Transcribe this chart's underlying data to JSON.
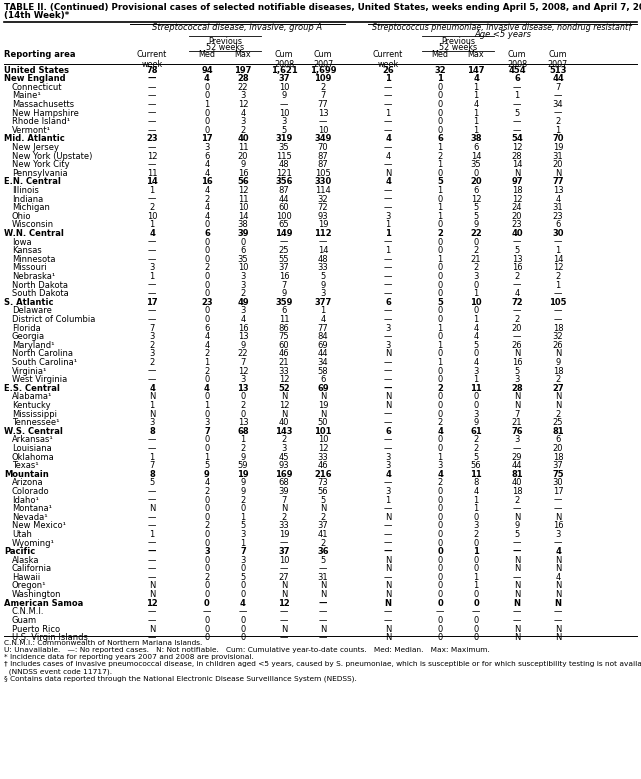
{
  "title": "TABLE II. (Continued) Provisional cases of selected notifiable diseases, United States, weeks ending April 5, 2008, and April 7, 2007",
  "title2": "(14th Week)*",
  "col_group1": "Streptococcal disease, invasive, group A",
  "col_group2": "Streptococcus pneumoniae, invasive disease, nondrug resistant†",
  "col_group2b": "Age <5 years",
  "reporting_area_label": "Reporting area",
  "rows": [
    [
      "United States",
      "78",
      "94",
      "197",
      "1,621",
      "1,699",
      "26",
      "32",
      "147",
      "454",
      "513"
    ],
    [
      "New England",
      "—",
      "4",
      "28",
      "37",
      "109",
      "1",
      "1",
      "4",
      "6",
      "44"
    ],
    [
      "Connecticut",
      "—",
      "0",
      "22",
      "10",
      "2",
      "—",
      "0",
      "1",
      "—",
      "7"
    ],
    [
      "Maine¹",
      "—",
      "0",
      "3",
      "9",
      "7",
      "—",
      "0",
      "1",
      "1",
      "—"
    ],
    [
      "Massachusetts",
      "—",
      "1",
      "12",
      "—",
      "77",
      "—",
      "0",
      "4",
      "—",
      "34"
    ],
    [
      "New Hampshire",
      "—",
      "0",
      "4",
      "10",
      "13",
      "1",
      "0",
      "1",
      "5",
      "—"
    ],
    [
      "Rhode Island¹",
      "—",
      "0",
      "3",
      "3",
      "—",
      "—",
      "0",
      "1",
      "—",
      "2"
    ],
    [
      "Vermont¹",
      "—",
      "0",
      "2",
      "5",
      "10",
      "—",
      "0",
      "1",
      "—",
      "1"
    ],
    [
      "Mid. Atlantic",
      "23",
      "17",
      "40",
      "319",
      "349",
      "4",
      "6",
      "38",
      "54",
      "70"
    ],
    [
      "New Jersey",
      "—",
      "3",
      "11",
      "35",
      "70",
      "—",
      "1",
      "6",
      "12",
      "19"
    ],
    [
      "New York (Upstate)",
      "12",
      "6",
      "20",
      "115",
      "87",
      "4",
      "2",
      "14",
      "28",
      "31"
    ],
    [
      "New York City",
      "—",
      "4",
      "9",
      "48",
      "87",
      "—",
      "1",
      "35",
      "14",
      "20"
    ],
    [
      "Pennsylvania",
      "11",
      "4",
      "16",
      "121",
      "105",
      "N",
      "0",
      "0",
      "N",
      "N"
    ],
    [
      "E.N. Central",
      "14",
      "16",
      "56",
      "356",
      "330",
      "4",
      "5",
      "20",
      "97",
      "77"
    ],
    [
      "Illinois",
      "1",
      "4",
      "12",
      "87",
      "114",
      "—",
      "1",
      "6",
      "18",
      "13"
    ],
    [
      "Indiana",
      "—",
      "2",
      "11",
      "44",
      "32",
      "—",
      "0",
      "12",
      "12",
      "4"
    ],
    [
      "Michigan",
      "2",
      "4",
      "10",
      "60",
      "72",
      "—",
      "1",
      "5",
      "24",
      "31"
    ],
    [
      "Ohio",
      "10",
      "4",
      "14",
      "100",
      "93",
      "3",
      "1",
      "5",
      "20",
      "23"
    ],
    [
      "Wisconsin",
      "1",
      "0",
      "38",
      "65",
      "19",
      "1",
      "0",
      "9",
      "23",
      "6"
    ],
    [
      "W.N. Central",
      "4",
      "6",
      "39",
      "149",
      "112",
      "1",
      "2",
      "22",
      "40",
      "30"
    ],
    [
      "Iowa",
      "—",
      "0",
      "0",
      "—",
      "—",
      "—",
      "0",
      "0",
      "—",
      "—"
    ],
    [
      "Kansas",
      "—",
      "0",
      "6",
      "25",
      "14",
      "1",
      "0",
      "2",
      "5",
      "1"
    ],
    [
      "Minnesota",
      "—",
      "0",
      "35",
      "55",
      "48",
      "—",
      "1",
      "21",
      "13",
      "14"
    ],
    [
      "Missouri",
      "3",
      "2",
      "10",
      "37",
      "33",
      "—",
      "0",
      "2",
      "16",
      "12"
    ],
    [
      "Nebraska¹",
      "1",
      "0",
      "3",
      "16",
      "5",
      "—",
      "0",
      "3",
      "2",
      "2"
    ],
    [
      "North Dakota",
      "—",
      "0",
      "3",
      "7",
      "9",
      "—",
      "0",
      "0",
      "—",
      "1"
    ],
    [
      "South Dakota",
      "—",
      "0",
      "2",
      "9",
      "3",
      "—",
      "0",
      "1",
      "4",
      "—"
    ],
    [
      "S. Atlantic",
      "17",
      "23",
      "49",
      "359",
      "377",
      "6",
      "5",
      "10",
      "72",
      "105"
    ],
    [
      "Delaware",
      "—",
      "0",
      "3",
      "6",
      "1",
      "—",
      "0",
      "0",
      "—",
      "—"
    ],
    [
      "District of Columbia",
      "—",
      "0",
      "4",
      "11",
      "4",
      "—",
      "0",
      "1",
      "2",
      "—"
    ],
    [
      "Florida",
      "7",
      "6",
      "16",
      "86",
      "77",
      "3",
      "1",
      "4",
      "20",
      "18"
    ],
    [
      "Georgia",
      "3",
      "4",
      "13",
      "75",
      "84",
      "—",
      "0",
      "4",
      "—",
      "32"
    ],
    [
      "Maryland¹",
      "2",
      "4",
      "9",
      "60",
      "69",
      "3",
      "1",
      "5",
      "26",
      "26"
    ],
    [
      "North Carolina",
      "3",
      "2",
      "22",
      "46",
      "44",
      "N",
      "0",
      "0",
      "N",
      "N"
    ],
    [
      "South Carolina¹",
      "2",
      "1",
      "7",
      "21",
      "34",
      "—",
      "1",
      "4",
      "16",
      "9"
    ],
    [
      "Virginia¹",
      "—",
      "2",
      "12",
      "33",
      "58",
      "—",
      "0",
      "3",
      "5",
      "18"
    ],
    [
      "West Virginia",
      "—",
      "0",
      "3",
      "12",
      "6",
      "—",
      "0",
      "1",
      "3",
      "2"
    ],
    [
      "E.S. Central",
      "4",
      "4",
      "13",
      "52",
      "69",
      "—",
      "2",
      "11",
      "28",
      "27"
    ],
    [
      "Alabama¹",
      "N",
      "0",
      "0",
      "N",
      "N",
      "N",
      "0",
      "0",
      "N",
      "N"
    ],
    [
      "Kentucky",
      "1",
      "1",
      "2",
      "12",
      "19",
      "N",
      "0",
      "0",
      "N",
      "N"
    ],
    [
      "Mississippi",
      "N",
      "0",
      "0",
      "N",
      "N",
      "—",
      "0",
      "3",
      "7",
      "2"
    ],
    [
      "Tennessee¹",
      "3",
      "3",
      "13",
      "40",
      "50",
      "—",
      "2",
      "9",
      "21",
      "25"
    ],
    [
      "W.S. Central",
      "8",
      "7",
      "68",
      "143",
      "101",
      "6",
      "4",
      "61",
      "76",
      "81"
    ],
    [
      "Arkansas¹",
      "—",
      "0",
      "1",
      "2",
      "10",
      "—",
      "0",
      "2",
      "3",
      "6"
    ],
    [
      "Louisiana",
      "—",
      "0",
      "2",
      "3",
      "12",
      "—",
      "0",
      "2",
      "—",
      "20"
    ],
    [
      "Oklahoma",
      "1",
      "1",
      "9",
      "45",
      "33",
      "3",
      "1",
      "5",
      "29",
      "18"
    ],
    [
      "Texas¹",
      "7",
      "5",
      "59",
      "93",
      "46",
      "3",
      "3",
      "56",
      "44",
      "37"
    ],
    [
      "Mountain",
      "8",
      "9",
      "19",
      "169",
      "216",
      "4",
      "4",
      "11",
      "81",
      "75"
    ],
    [
      "Arizona",
      "5",
      "4",
      "9",
      "68",
      "73",
      "—",
      "2",
      "8",
      "40",
      "30"
    ],
    [
      "Colorado",
      "—",
      "2",
      "9",
      "39",
      "56",
      "3",
      "0",
      "4",
      "18",
      "17"
    ],
    [
      "Idaho¹",
      "—",
      "0",
      "2",
      "7",
      "5",
      "1",
      "0",
      "1",
      "2",
      "—"
    ],
    [
      "Montana¹",
      "N",
      "0",
      "0",
      "N",
      "N",
      "—",
      "0",
      "1",
      "—",
      "—"
    ],
    [
      "Nevada¹",
      "—",
      "0",
      "1",
      "2",
      "2",
      "N",
      "0",
      "0",
      "N",
      "N"
    ],
    [
      "New Mexico¹",
      "—",
      "2",
      "5",
      "33",
      "37",
      "—",
      "0",
      "3",
      "9",
      "16"
    ],
    [
      "Utah",
      "1",
      "0",
      "3",
      "19",
      "41",
      "—",
      "0",
      "2",
      "5",
      "3"
    ],
    [
      "Wyoming¹",
      "—",
      "0",
      "1",
      "—",
      "2",
      "—",
      "0",
      "0",
      "—",
      "—"
    ],
    [
      "Pacific",
      "—",
      "3",
      "7",
      "37",
      "36",
      "—",
      "0",
      "1",
      "—",
      "4"
    ],
    [
      "Alaska",
      "—",
      "0",
      "3",
      "10",
      "5",
      "N",
      "0",
      "0",
      "N",
      "N"
    ],
    [
      "California",
      "—",
      "0",
      "0",
      "—",
      "—",
      "N",
      "0",
      "0",
      "N",
      "N"
    ],
    [
      "Hawaii",
      "—",
      "2",
      "5",
      "27",
      "31",
      "—",
      "0",
      "1",
      "—",
      "4"
    ],
    [
      "Oregon¹",
      "N",
      "0",
      "0",
      "N",
      "N",
      "N",
      "0",
      "1",
      "N",
      "N"
    ],
    [
      "Washington",
      "N",
      "0",
      "0",
      "N",
      "N",
      "N",
      "0",
      "0",
      "N",
      "N"
    ],
    [
      "American Samoa",
      "12",
      "0",
      "4",
      "12",
      "—",
      "N",
      "0",
      "0",
      "N",
      "N"
    ],
    [
      "C.N.M.I.",
      "—",
      "—",
      "—",
      "—",
      "—",
      "—",
      "—",
      "—",
      "—",
      "—"
    ],
    [
      "Guam",
      "—",
      "0",
      "0",
      "—",
      "—",
      "—",
      "0",
      "0",
      "—",
      "—"
    ],
    [
      "Puerto Rico",
      "N",
      "0",
      "0",
      "N",
      "N",
      "N",
      "0",
      "0",
      "N",
      "N"
    ],
    [
      "U.S. Virgin Islands",
      "—",
      "0",
      "0",
      "—",
      "—",
      "N",
      "0",
      "0",
      "N",
      "N"
    ]
  ],
  "bold_rows": [
    0,
    1,
    8,
    13,
    19,
    27,
    37,
    42,
    47,
    56,
    62
  ],
  "footnotes": [
    "C.N.M.I.: Commonwealth of Northern Mariana Islands.",
    "U: Unavailable.   —: No reported cases.   N: Not notifiable.   Cum: Cumulative year-to-date counts.   Med: Median.   Max: Maximum.",
    "* Incidence data for reporting years 2007 and 2008 are provisional.",
    "† Includes cases of invasive pneumococcal disease, in children aged <5 years, caused by S. pneumoniae, which is susceptible or for which susceptibility testing is not available",
    "  (NNDSS event code 11717).",
    "§ Contains data reported through the National Electronic Disease Surveillance System (NEDSS)."
  ]
}
